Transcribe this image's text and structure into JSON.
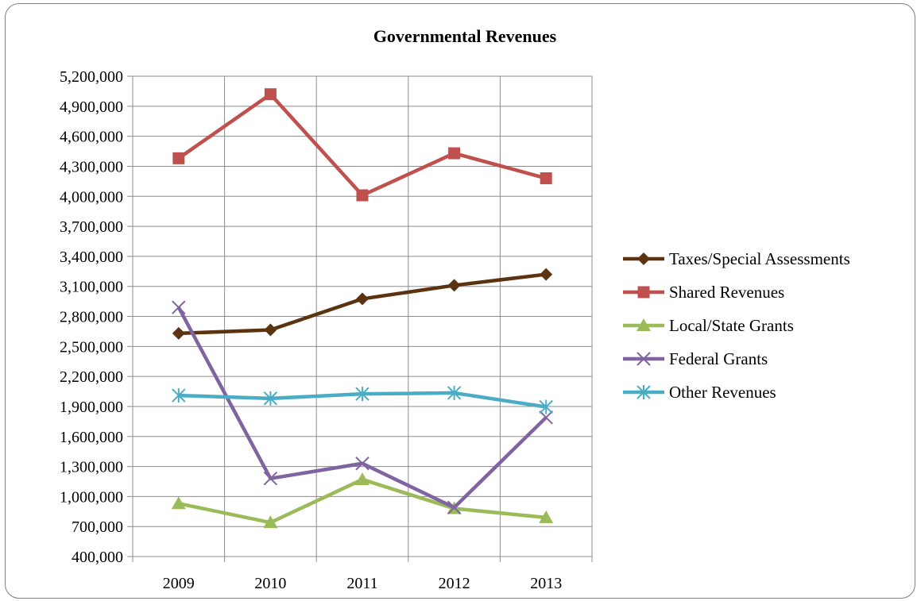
{
  "chart_data": {
    "type": "line",
    "title": "Governmental Revenues",
    "xlabel": "",
    "ylabel": "",
    "categories": [
      "2009",
      "2010",
      "2011",
      "2012",
      "2013"
    ],
    "ylim": [
      400000,
      5200000
    ],
    "ystep": 300000,
    "ytick_labels": [
      "400,000",
      "700,000",
      "1,000,000",
      "1,300,000",
      "1,600,000",
      "1,900,000",
      "2,200,000",
      "2,500,000",
      "2,800,000",
      "3,100,000",
      "3,400,000",
      "3,700,000",
      "4,000,000",
      "4,300,000",
      "4,600,000",
      "4,900,000",
      "5,200,000"
    ],
    "grid": true,
    "legend_position": "right",
    "series": [
      {
        "name": "Taxes/Special Assessments",
        "color": "#5c3310",
        "marker": "diamond",
        "values": [
          2630000,
          2665000,
          2975000,
          3110000,
          3220000
        ]
      },
      {
        "name": "Shared Revenues",
        "color": "#c0504d",
        "marker": "square",
        "values": [
          4380000,
          5020000,
          4010000,
          4430000,
          4180000
        ]
      },
      {
        "name": "Local/State Grants",
        "color": "#9bbb59",
        "marker": "triangle",
        "values": [
          930000,
          740000,
          1170000,
          880000,
          790000
        ]
      },
      {
        "name": "Federal Grants",
        "color": "#8064a2",
        "marker": "x",
        "values": [
          2890000,
          1180000,
          1330000,
          890000,
          1790000
        ]
      },
      {
        "name": "Other Revenues",
        "color": "#4bacc6",
        "marker": "star",
        "values": [
          2010000,
          1980000,
          2025000,
          2035000,
          1895000
        ]
      }
    ]
  }
}
